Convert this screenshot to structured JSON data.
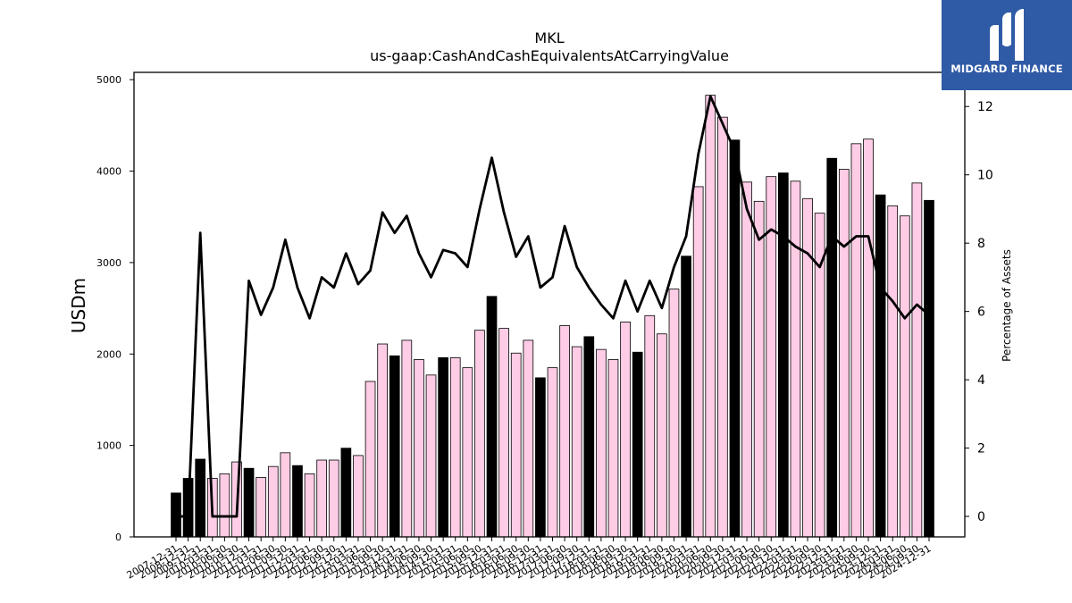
{
  "logo": {
    "text": "MIDGARD FINANCE"
  },
  "chart_data": {
    "type": "bar",
    "title": "MKL",
    "subtitle": "us-gaap:CashAndCashEquivalentsAtCarryingValue",
    "ylabel": "USDm",
    "y2label": "Percentage of Assets",
    "ylim": [
      0,
      5080
    ],
    "y2lim": [
      -0.6,
      13
    ],
    "yticks": [
      0,
      1000,
      2000,
      3000,
      4000,
      5000
    ],
    "y2ticks": [
      0,
      2,
      4,
      6,
      8,
      10,
      12
    ],
    "grid": false,
    "colors": {
      "annual": "#000000",
      "quarterly": "#ffcce6",
      "edge": "#000000",
      "line": "#000000"
    },
    "categories": [
      "2007-12-31",
      "2008-12-31",
      "2009-12-31",
      "2010-03-31",
      "2010-06-30",
      "2010-09-30",
      "2010-12-31",
      "2011-03-31",
      "2011-06-30",
      "2011-09-30",
      "2011-12-31",
      "2012-03-31",
      "2012-06-30",
      "2012-09-30",
      "2012-12-31",
      "2013-03-31",
      "2013-06-30",
      "2013-09-30",
      "2013-12-31",
      "2014-03-31",
      "2014-06-30",
      "2014-09-30",
      "2014-12-31",
      "2015-03-31",
      "2015-06-30",
      "2015-09-30",
      "2015-12-31",
      "2016-03-31",
      "2016-06-30",
      "2016-09-30",
      "2016-12-31",
      "2017-03-31",
      "2017-06-30",
      "2017-09-30",
      "2017-12-31",
      "2018-03-31",
      "2018-06-30",
      "2018-09-30",
      "2018-12-31",
      "2019-03-31",
      "2019-06-30",
      "2019-09-30",
      "2019-12-31",
      "2020-03-31",
      "2020-06-30",
      "2020-09-30",
      "2020-12-31",
      "2021-03-31",
      "2021-06-30",
      "2021-09-30",
      "2021-12-31",
      "2022-03-31",
      "2022-06-30",
      "2022-09-30",
      "2022-12-31",
      "2023-03-31",
      "2023-06-30",
      "2023-09-30",
      "2023-12-31",
      "2024-03-31",
      "2024-06-30",
      "2024-09-30",
      "2024-12-31"
    ],
    "values": [
      480,
      640,
      850,
      640,
      690,
      820,
      750,
      650,
      770,
      920,
      780,
      690,
      840,
      840,
      970,
      890,
      1700,
      2110,
      1980,
      2150,
      1940,
      1770,
      1960,
      1960,
      1850,
      2260,
      2630,
      2280,
      2010,
      2150,
      1740,
      1850,
      2310,
      2080,
      2190,
      2050,
      1940,
      2350,
      2020,
      2420,
      2220,
      2710,
      3070,
      3830,
      4830,
      4590,
      4340,
      3880,
      3670,
      3940,
      3980,
      3890,
      3700,
      3540,
      4140,
      4020,
      4300,
      4350,
      3740,
      3620,
      3510,
      3870,
      3680
    ],
    "pct_assets": [
      0.0,
      0.0,
      8.3,
      0.0,
      0.0,
      0.0,
      6.9,
      5.9,
      6.7,
      8.1,
      6.7,
      5.8,
      7.0,
      6.7,
      7.7,
      6.8,
      7.2,
      8.9,
      8.3,
      8.8,
      7.7,
      7.0,
      7.8,
      7.7,
      7.3,
      9.0,
      10.5,
      8.9,
      7.6,
      8.2,
      6.7,
      7.0,
      8.5,
      7.3,
      6.7,
      6.2,
      5.8,
      6.9,
      6.0,
      6.9,
      6.1,
      7.3,
      8.2,
      10.6,
      12.3,
      11.5,
      10.7,
      9.0,
      8.1,
      8.4,
      8.2,
      7.9,
      7.7,
      7.3,
      8.2,
      7.9,
      8.2,
      8.2,
      6.7,
      6.3,
      5.8,
      6.2,
      5.9
    ]
  }
}
